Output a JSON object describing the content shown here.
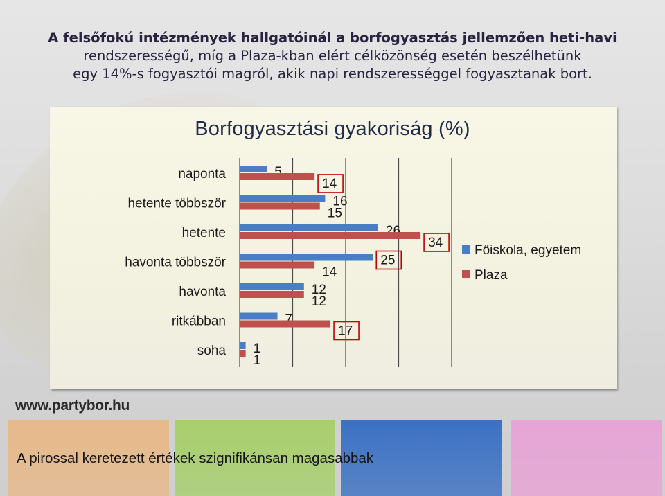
{
  "headline": {
    "line1": "A felsőfokú intézmények hallgatóinál a borfogyasztás jellemzően heti-havi",
    "line2": "rendszerességű, míg a Plaza-kban elért célközönség esetén beszélhetünk",
    "line3": "egy 14%-s fogyasztói magról, akik napi rendszerességgel fogyasztanak bort."
  },
  "chart_data": {
    "type": "bar",
    "orientation": "horizontal",
    "title": "Borfogyasztási gyakoriság (%)",
    "categories": [
      "naponta",
      "hetente többször",
      "hetente",
      "havonta többször",
      "havonta",
      "ritkábban",
      "soha"
    ],
    "series": [
      {
        "name": "Főiskola, egyetem",
        "color": "#4a7ec4",
        "values": [
          5,
          16,
          26,
          25,
          12,
          7,
          1
        ],
        "highlighted": [
          false,
          false,
          false,
          true,
          false,
          false,
          false
        ]
      },
      {
        "name": "Plaza",
        "color": "#c0504d",
        "values": [
          14,
          15,
          34,
          14,
          12,
          17,
          1
        ],
        "highlighted": [
          true,
          false,
          true,
          false,
          false,
          true,
          false
        ]
      }
    ],
    "xlim": [
      0,
      40
    ],
    "gridlines": true,
    "legend_position": "right"
  },
  "watermark": "www.partybor.hu",
  "footer_note": "A pirossal keretezett értékek szignifikánsan magasabbak",
  "strip_colors": [
    "#e7b98a",
    "#a8cf6d",
    "#3b71c4",
    "#76c6cc",
    "#e7a4d6"
  ]
}
